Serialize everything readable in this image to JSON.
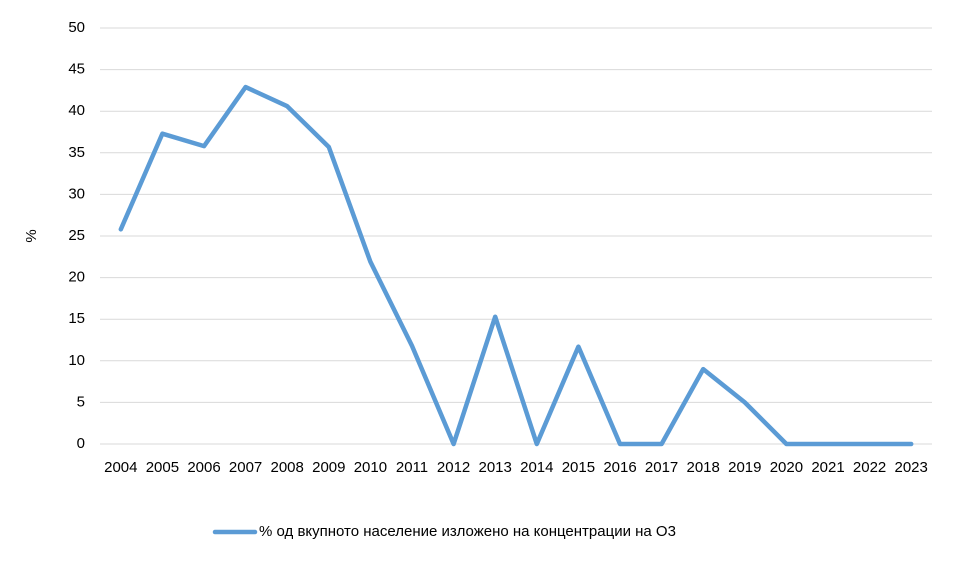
{
  "chart_data": {
    "type": "line",
    "y_label": "%",
    "categories": [
      "2004",
      "2005",
      "2006",
      "2007",
      "2008",
      "2009",
      "2010",
      "2011",
      "2012",
      "2013",
      "2014",
      "2015",
      "2016",
      "2017",
      "2018",
      "2019",
      "2020",
      "2021",
      "2022",
      "2023"
    ],
    "series": [
      {
        "name": "% од вкупното население изложено на концентрации на О3",
        "color": "#5b9bd5",
        "values": [
          25.8,
          37.3,
          35.8,
          42.9,
          40.6,
          35.7,
          21.9,
          11.8,
          0,
          15.3,
          0,
          11.7,
          0,
          0,
          9.0,
          5.0,
          0,
          0,
          0,
          0
        ]
      }
    ],
    "ylim": [
      0,
      50
    ],
    "yticks": [
      0,
      5,
      10,
      15,
      20,
      25,
      30,
      35,
      40,
      45,
      50
    ],
    "grid": true,
    "legend": "bottom"
  }
}
